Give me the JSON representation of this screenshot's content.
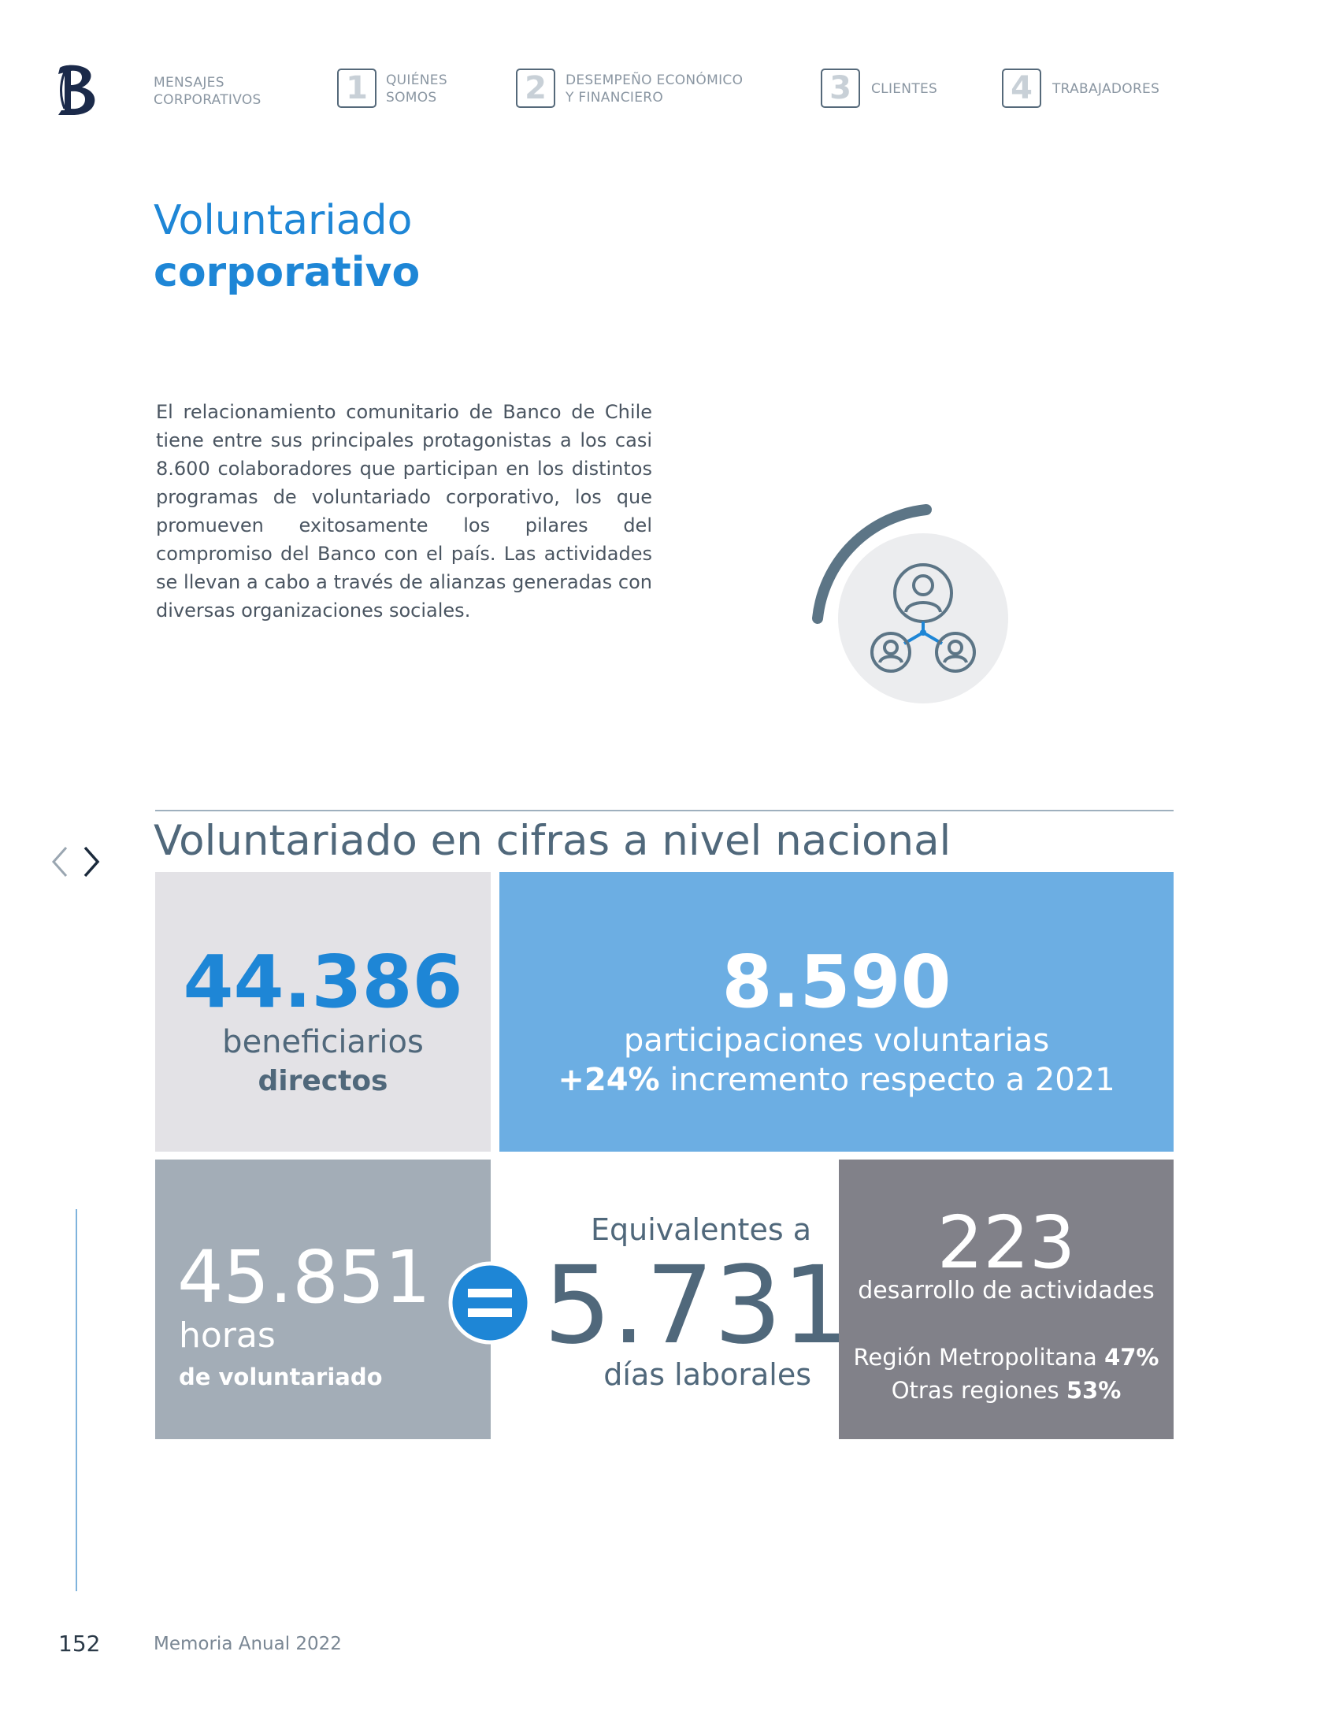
{
  "header": {
    "logo_icon": "bank-logo-icon",
    "nav": [
      {
        "number": "",
        "label_line1": "MENSAJES",
        "label_line2": "CORPORATIVOS"
      },
      {
        "number": "1",
        "label_line1": "QUIÉNES",
        "label_line2": "SOMOS"
      },
      {
        "number": "2",
        "label_line1": "DESEMPEÑO ECONÓMICO",
        "label_line2": "Y FINANCIERO"
      },
      {
        "number": "3",
        "label_line1": "CLIENTES",
        "label_line2": ""
      },
      {
        "number": "4",
        "label_line1": "TRABAJADORES",
        "label_line2": ""
      }
    ]
  },
  "title": {
    "line1": "Voluntariado",
    "line2": "corporativo"
  },
  "intro": {
    "paragraph": "El relacionamiento comunitario de Banco de Chile tiene entre sus principales protagonistas a los casi 8.600 colaboradores que participan en los distintos programas de voluntariado corporativo, los que promueven exitosamente los pilares del compromiso del Banco con el país. Las actividades se llevan a cabo a través de alianzas generadas con diversas organizaciones sociales."
  },
  "illustration": {
    "icon": "people-network-icon"
  },
  "section": {
    "title": "Voluntariado en cifras a nivel nacional",
    "nav_prev_icon": "chevron-left-icon",
    "nav_next_icon": "chevron-right-icon"
  },
  "stats": {
    "beneficiaries": {
      "value": "44.386",
      "label": "beneficiarios",
      "sublabel": "directos"
    },
    "participations": {
      "value": "8.590",
      "label": "participaciones voluntarias",
      "increase": "+24%",
      "increase_text": " incremento respecto a 2021"
    },
    "hours": {
      "value": "45.851",
      "label": "horas",
      "sublabel": "de voluntariado"
    },
    "equivalence": {
      "prefix": "Equivalentes a",
      "value": "5.731",
      "label": "días laborales",
      "icon": "equals-icon"
    },
    "activities": {
      "value": "223",
      "label": "desarrollo de actividades",
      "region1_label": "Región Metropolitana ",
      "region1_pct": "47%",
      "region2_label": "Otras regiones ",
      "region2_pct": "53%"
    }
  },
  "footer": {
    "page_number": "152",
    "document_title": "Memoria Anual 2022"
  },
  "colors": {
    "accent_blue": "#1e86d6",
    "slate": "#50687b",
    "box_light_gray": "#e3e2e6",
    "box_blue": "#6caee3",
    "box_mid_gray": "#a3adb7",
    "box_dark_gray": "#818189"
  }
}
